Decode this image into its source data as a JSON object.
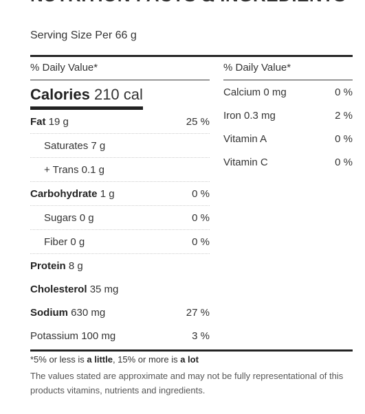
{
  "header": {
    "title": "NUTRITION FACTS & INGREDIENTS",
    "serving": "Serving Size Per 66 g"
  },
  "left": {
    "dv_label": "% Daily Value*",
    "calories_label": "Calories",
    "calories_value": "210 cal",
    "rows": [
      {
        "label": "Fat",
        "amount": "19 g",
        "pct": "25 %"
      },
      {
        "label": "Saturates",
        "amount": "7 g",
        "pct": ""
      },
      {
        "label": "+ Trans",
        "amount": "0.1 g",
        "pct": ""
      },
      {
        "label": "Carbohydrate",
        "amount": "1 g",
        "pct": "0 %"
      },
      {
        "label": "Sugars",
        "amount": "0 g",
        "pct": "0 %"
      },
      {
        "label": "Fiber",
        "amount": "0 g",
        "pct": "0 %"
      },
      {
        "label": "Protein",
        "amount": "8 g",
        "pct": ""
      },
      {
        "label": "Cholesterol",
        "amount": "35 mg",
        "pct": ""
      },
      {
        "label": "Sodium",
        "amount": "630 mg",
        "pct": "27 %"
      },
      {
        "label": "Potassium",
        "amount": "100 mg",
        "pct": "3 %"
      }
    ]
  },
  "right": {
    "dv_label": "% Daily Value*",
    "rows": [
      {
        "label": "Calcium 0 mg",
        "pct": "0 %"
      },
      {
        "label": "Iron 0.3 mg",
        "pct": "2 %"
      },
      {
        "label": "Vitamin A",
        "pct": "0 %"
      },
      {
        "label": "Vitamin C",
        "pct": "0 %"
      }
    ]
  },
  "footer": {
    "note_pre": "*5% or less is ",
    "note_little": "a little",
    "note_mid": ", 15% or more is ",
    "note_lot": "a lot",
    "disclaimer": "The values stated are approximate and may not be fully representational of this products vitamins, nutrients and ingredients."
  }
}
